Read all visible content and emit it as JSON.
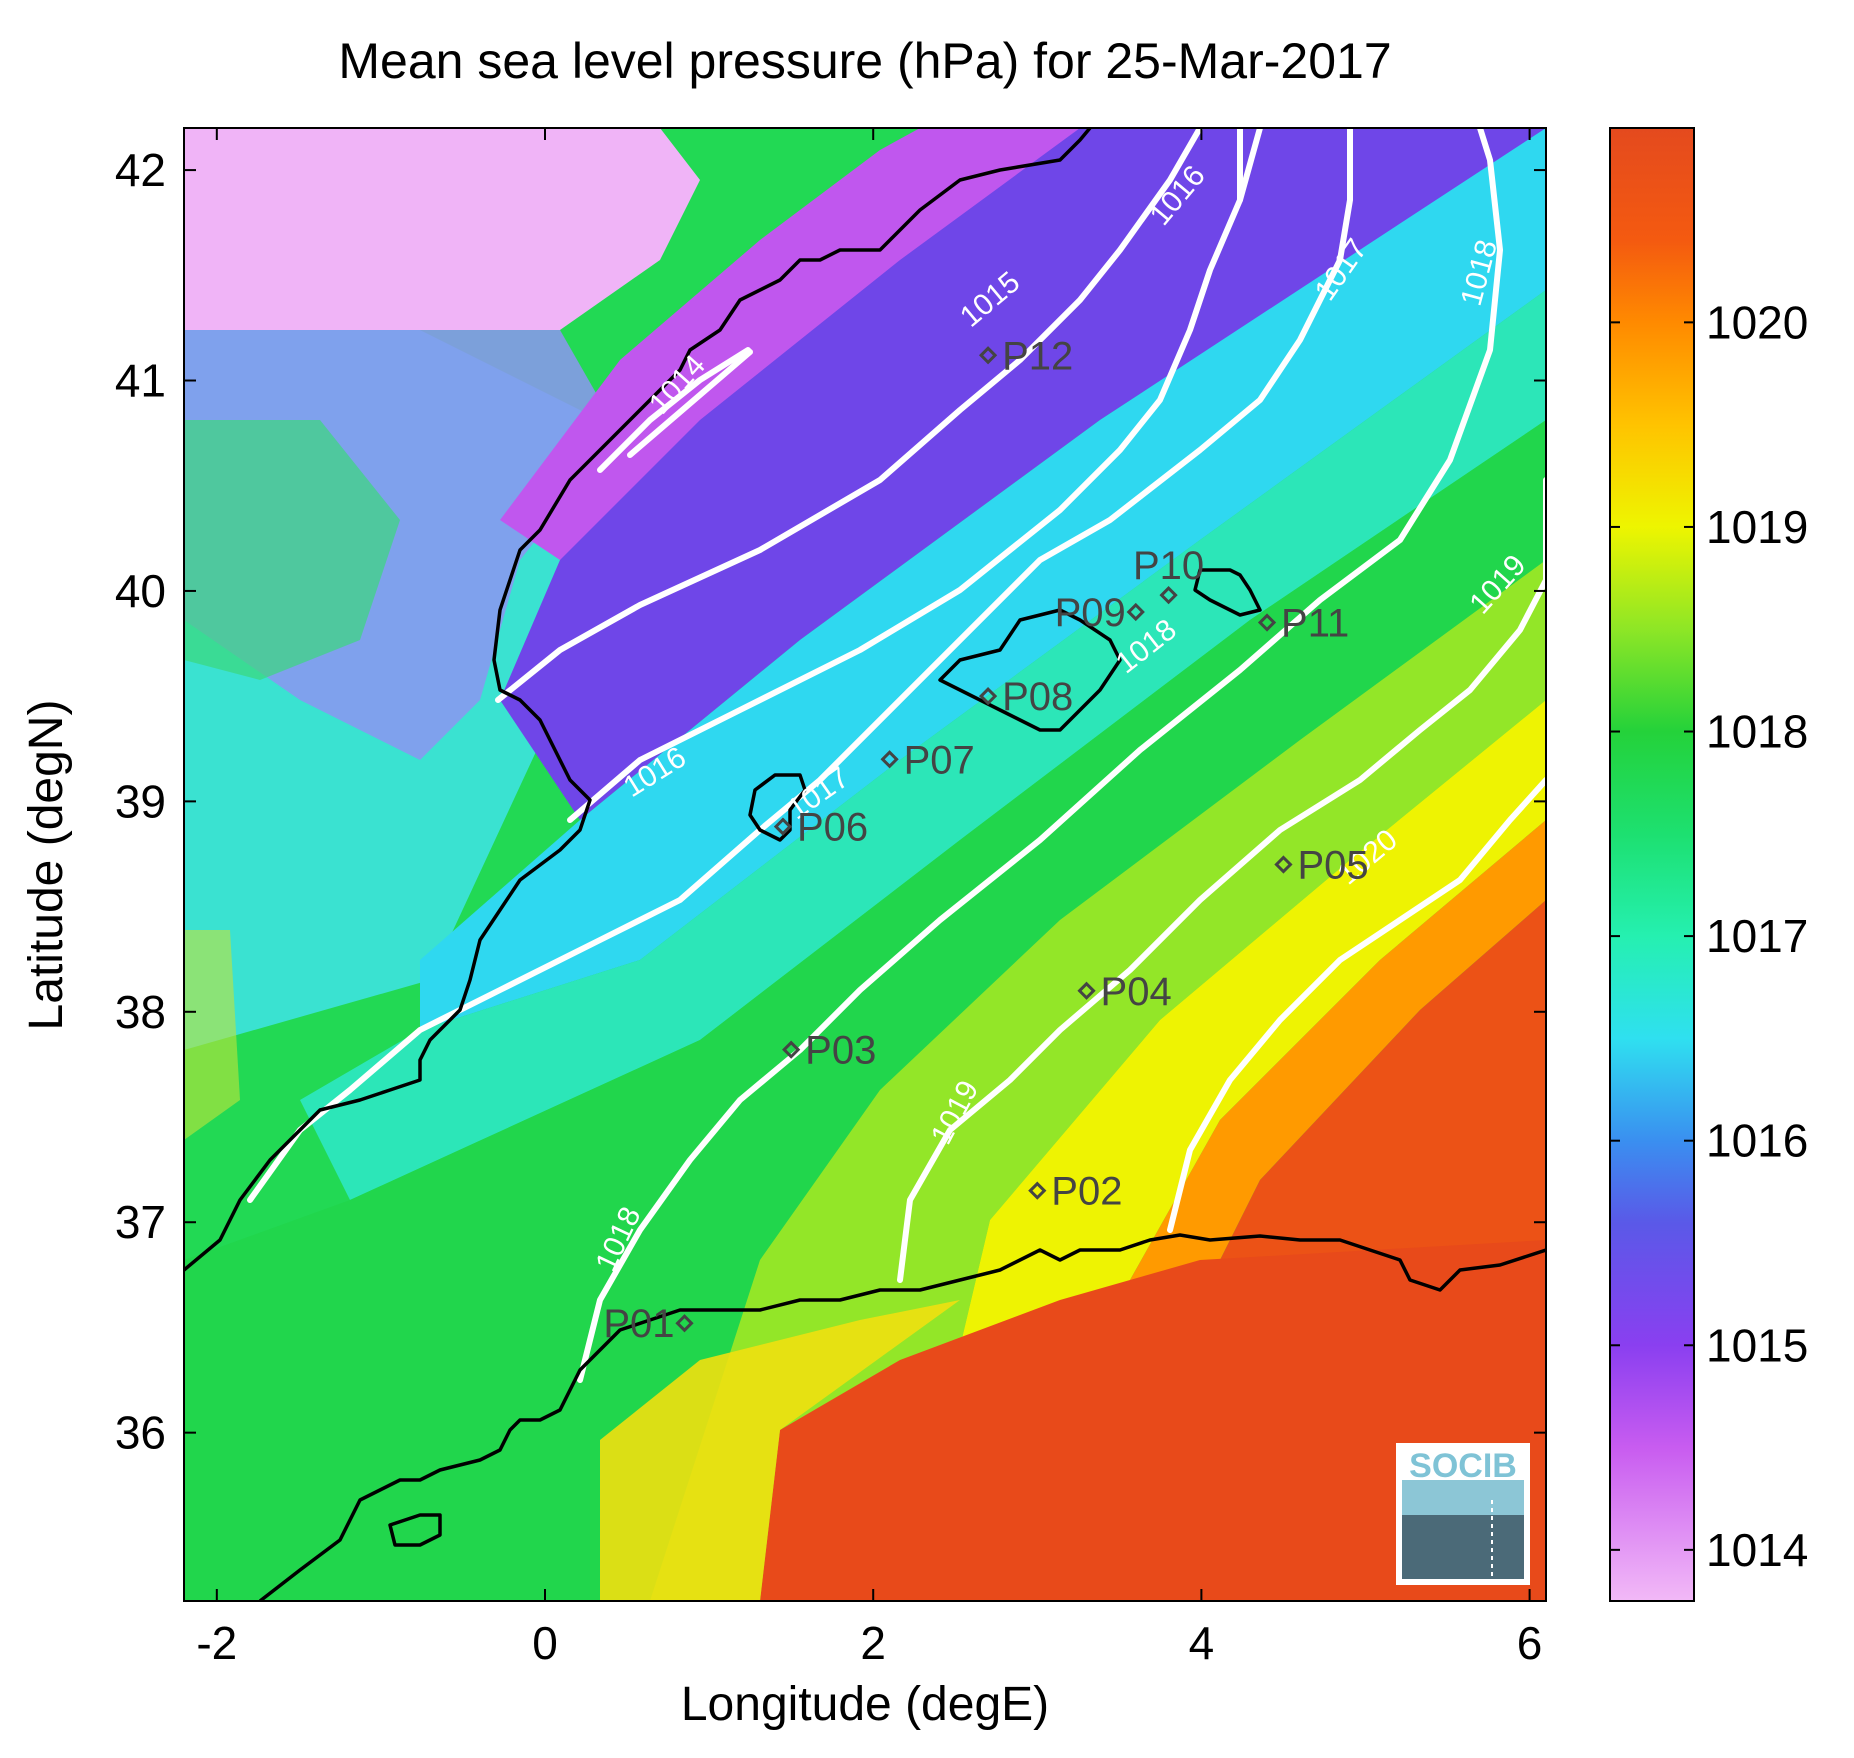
{
  "title": "Mean sea level pressure (hPa) for 25-Mar-2017",
  "map": {
    "x_label": "Longitude (degE)",
    "y_label": "Latitude (degN)",
    "lon_range": [
      -2.2,
      6.1
    ],
    "lat_range": [
      35.2,
      42.2
    ],
    "x_ticks": [
      -2,
      0,
      2,
      4,
      6
    ],
    "y_ticks": [
      36,
      37,
      38,
      39,
      40,
      41,
      42
    ],
    "x_tick_labels": [
      "-2",
      "0",
      "2",
      "4",
      "6"
    ],
    "y_tick_labels": [
      "36",
      "37",
      "38",
      "39",
      "40",
      "41",
      "42"
    ]
  },
  "colorbar": {
    "range": [
      1013.75,
      1020.95
    ],
    "ticks": [
      1014,
      1015,
      1016,
      1017,
      1018,
      1019,
      1020
    ],
    "tick_labels": [
      "1014",
      "1015",
      "1016",
      "1017",
      "1018",
      "1019",
      "1020"
    ],
    "stops": [
      {
        "value": 1013.75,
        "color": "#f2b9f7"
      },
      {
        "value": 1014.5,
        "color": "#c85cf0"
      },
      {
        "value": 1015.0,
        "color": "#8a3ff0"
      },
      {
        "value": 1015.6,
        "color": "#5a59e8"
      },
      {
        "value": 1016.0,
        "color": "#3a8ff0"
      },
      {
        "value": 1016.5,
        "color": "#2fe0f0"
      },
      {
        "value": 1017.0,
        "color": "#25f0b0"
      },
      {
        "value": 1017.5,
        "color": "#1de070"
      },
      {
        "value": 1018.0,
        "color": "#24d23a"
      },
      {
        "value": 1018.5,
        "color": "#8ee626"
      },
      {
        "value": 1019.0,
        "color": "#eef500"
      },
      {
        "value": 1019.5,
        "color": "#ffc300"
      },
      {
        "value": 1020.0,
        "color": "#ff8a00"
      },
      {
        "value": 1020.4,
        "color": "#f45a10"
      },
      {
        "value": 1020.95,
        "color": "#e44a1e"
      }
    ]
  },
  "contour_labels": [
    {
      "text": "1014",
      "lon": 0.85,
      "lat": 40.95,
      "angle": -48
    },
    {
      "text": "1015",
      "lon": 2.75,
      "lat": 41.35,
      "angle": -40
    },
    {
      "text": "1016",
      "lon": 3.9,
      "lat": 41.85,
      "angle": -50
    },
    {
      "text": "1017",
      "lon": 4.9,
      "lat": 41.5,
      "angle": -55
    },
    {
      "text": "1018",
      "lon": 5.75,
      "lat": 41.5,
      "angle": -75
    },
    {
      "text": "1016",
      "lon": 0.7,
      "lat": 39.1,
      "angle": -32
    },
    {
      "text": "1017",
      "lon": 1.7,
      "lat": 39.0,
      "angle": -35
    },
    {
      "text": "1018",
      "lon": 3.7,
      "lat": 39.7,
      "angle": -38
    },
    {
      "text": "1019",
      "lon": 5.85,
      "lat": 40.0,
      "angle": -48
    },
    {
      "text": "1020",
      "lon": 5.05,
      "lat": 38.7,
      "angle": -40
    },
    {
      "text": "1019",
      "lon": 2.55,
      "lat": 37.5,
      "angle": -62
    },
    {
      "text": "1018",
      "lon": 0.5,
      "lat": 36.9,
      "angle": -65
    }
  ],
  "stations": [
    {
      "name": "P01",
      "lon": 0.85,
      "lat": 36.52,
      "dx": -10,
      "anchor": "end"
    },
    {
      "name": "P02",
      "lon": 3.0,
      "lat": 37.15,
      "dx": 14,
      "anchor": "start"
    },
    {
      "name": "P03",
      "lon": 1.5,
      "lat": 37.82,
      "dx": 14,
      "anchor": "start"
    },
    {
      "name": "P04",
      "lon": 3.3,
      "lat": 38.1,
      "dx": 14,
      "anchor": "start"
    },
    {
      "name": "P05",
      "lon": 4.5,
      "lat": 38.7,
      "dx": 14,
      "anchor": "start"
    },
    {
      "name": "P06",
      "lon": 1.45,
      "lat": 38.88,
      "dx": 14,
      "anchor": "start"
    },
    {
      "name": "P07",
      "lon": 2.1,
      "lat": 39.2,
      "dx": 14,
      "anchor": "start"
    },
    {
      "name": "P08",
      "lon": 2.7,
      "lat": 39.5,
      "dx": 14,
      "anchor": "start"
    },
    {
      "name": "P09",
      "lon": 3.6,
      "lat": 39.9,
      "dx": -10,
      "anchor": "end"
    },
    {
      "name": "P10",
      "lon": 3.8,
      "lat": 39.98,
      "dx": 0,
      "dy": -30,
      "anchor": "middle"
    },
    {
      "name": "P11",
      "lon": 4.4,
      "lat": 39.85,
      "dx": 14,
      "anchor": "start"
    },
    {
      "name": "P12",
      "lon": 2.7,
      "lat": 41.12,
      "dx": 14,
      "anchor": "start"
    }
  ],
  "logo": {
    "text": "SOCIB"
  }
}
